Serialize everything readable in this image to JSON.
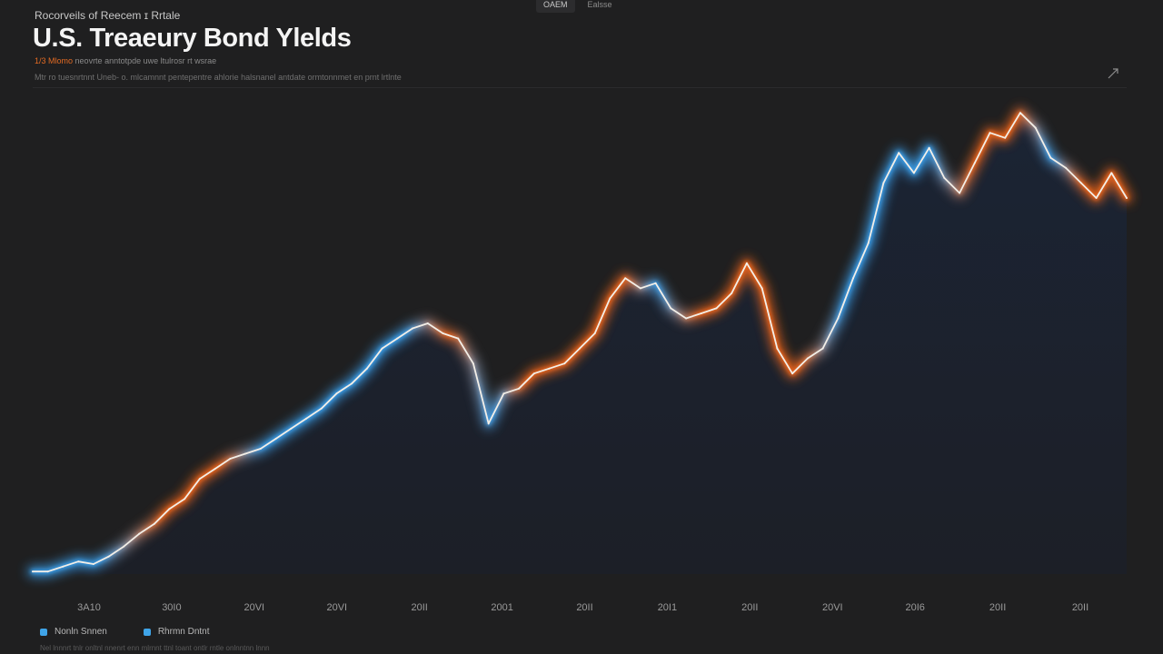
{
  "tabs": [
    {
      "label": "OAEM"
    },
    {
      "label": "Ealsse"
    }
  ],
  "header": {
    "eyebrow": "Rocorveils of Reecem ɪ Rrtale",
    "title": "U.S. Treaeury Bond Ylelds",
    "subtitle_accent": "1/3 Mlomo",
    "subtitle_rest": "neovrte anntotpde uwe ltulrosr rt wsrae",
    "note": "Mtr ro tuesnrtnnt Uneb- o. mlcamnnt pentepentre ahlorie halsnanel antdate ormtonnmet en prnt lrtlnte"
  },
  "legend": [
    {
      "label": "Nonln Snnen",
      "color": "#3fa4e8"
    },
    {
      "label": "Rhrmn Dntnt",
      "color": "#3fa4e8"
    }
  ],
  "footnote": "Nel lnnnrt tnlr onltnl nnenrt enn mlrnnt ttnl toant ontlr rntle onlnntnn lnnn",
  "colors": {
    "background": "#1f1f20",
    "area_top": "#1b2434",
    "area_bottom": "#1c1f27",
    "line": "#f3efe8",
    "glow_blue": "#3b9ce6",
    "glow_orange": "#e8641c"
  },
  "icons": {
    "expand": "diagonal-arrow-icon"
  },
  "chart_data": {
    "type": "area",
    "title": "U.S. Treaeury Bond Ylelds",
    "xlabel": "",
    "ylabel": "",
    "grid": false,
    "legend_position": "bottom-left",
    "x_tick_labels": [
      "3A10",
      "30I0",
      "20VI",
      "20VI",
      "20II",
      "2001",
      "20II",
      "20I1",
      "20II",
      "20VI",
      "20I6",
      "20II",
      "20II"
    ],
    "ylim": [
      0,
      100
    ],
    "series": [
      {
        "values": [
          0.5,
          0.5,
          1.5,
          2.5,
          2,
          3.5,
          5.5,
          8,
          10,
          13,
          15,
          19,
          21,
          23,
          24,
          25,
          27,
          29,
          31,
          33,
          36,
          38,
          41,
          45,
          47,
          49,
          50,
          48,
          47,
          42,
          30,
          36,
          37,
          40,
          41,
          42,
          45,
          48,
          55,
          59,
          57,
          58,
          53,
          51,
          52,
          53,
          56,
          62,
          57,
          45,
          40,
          43,
          45,
          51,
          59,
          66,
          78,
          84,
          80,
          85,
          79,
          76,
          82,
          88,
          87,
          92,
          89,
          83,
          81,
          78,
          75,
          80,
          75
        ]
      }
    ]
  }
}
